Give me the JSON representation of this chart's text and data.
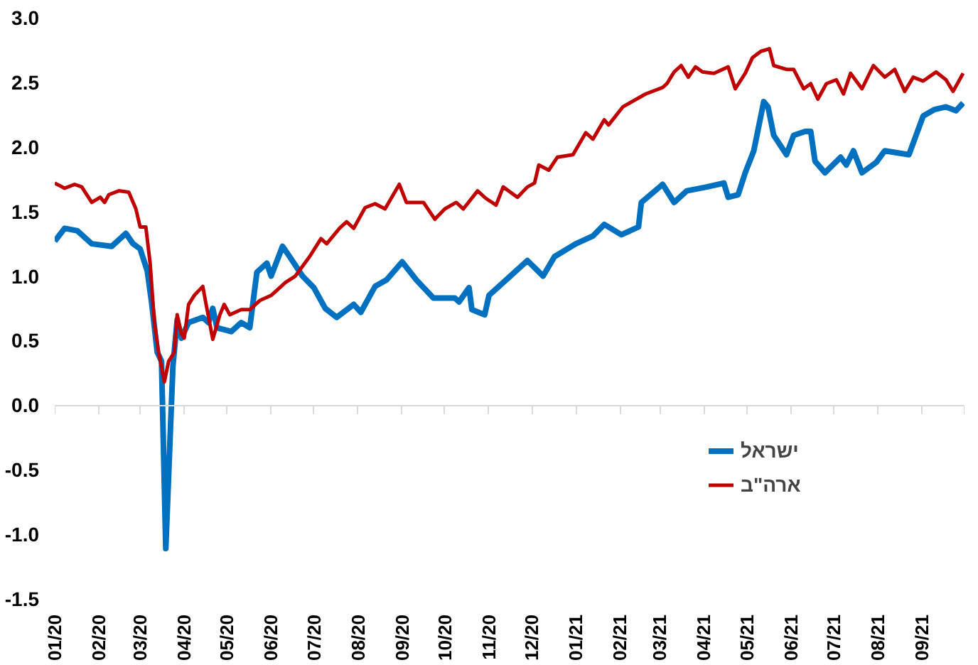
{
  "chart_data": {
    "type": "line",
    "legend": "bottom right",
    "line_style": "solid",
    "marker": "none",
    "xlim": [
      "2020-01-01",
      "2021-10-01"
    ],
    "ylim": [
      -1.5,
      3.0
    ],
    "xticks": [
      {
        "value": "2020-01-01",
        "label": "01/20"
      },
      {
        "value": "2020-02-01",
        "label": "02/20"
      },
      {
        "value": "2020-03-01",
        "label": "03/20"
      },
      {
        "value": "2020-04-01",
        "label": "04/20"
      },
      {
        "value": "2020-05-01",
        "label": "05/20"
      },
      {
        "value": "2020-06-01",
        "label": "06/20"
      },
      {
        "value": "2020-07-01",
        "label": "07/20"
      },
      {
        "value": "2020-08-01",
        "label": "08/20"
      },
      {
        "value": "2020-09-01",
        "label": "09/20"
      },
      {
        "value": "2020-10-01",
        "label": "10/20"
      },
      {
        "value": "2020-11-01",
        "label": "11/20"
      },
      {
        "value": "2020-12-01",
        "label": "12/20"
      },
      {
        "value": "2021-01-01",
        "label": "01/21"
      },
      {
        "value": "2021-02-01",
        "label": "02/21"
      },
      {
        "value": "2021-03-01",
        "label": "03/21"
      },
      {
        "value": "2021-04-01",
        "label": "04/21"
      },
      {
        "value": "2021-05-01",
        "label": "05/21"
      },
      {
        "value": "2021-06-01",
        "label": "06/21"
      },
      {
        "value": "2021-07-01",
        "label": "07/21"
      },
      {
        "value": "2021-08-01",
        "label": "08/21"
      },
      {
        "value": "2021-09-01",
        "label": "09/21"
      },
      {
        "value": "2021-10-01",
        "label": null
      }
    ],
    "yticks": [
      {
        "value": -1.5,
        "label": "-1.5"
      },
      {
        "value": -1.0,
        "label": "-1.0"
      },
      {
        "value": -0.5,
        "label": "-0.5"
      },
      {
        "value": 0,
        "label": "0.0"
      },
      {
        "value": 0.5,
        "label": "0.5"
      },
      {
        "value": 1.0,
        "label": "1.0"
      },
      {
        "value": 1.5,
        "label": "1.5"
      },
      {
        "value": 2.0,
        "label": "2.0"
      },
      {
        "value": 2.5,
        "label": "2.5"
      },
      {
        "value": 3.0,
        "label": "3.0"
      }
    ],
    "series": [
      {
        "name": "ישראל",
        "color": "#0070c0",
        "x": [
          "2020-01-01",
          "2020-01-08",
          "2020-01-17",
          "2020-01-27",
          "2020-02-10",
          "2020-02-20",
          "2020-02-25",
          "2020-03-01",
          "2020-03-06",
          "2020-03-09",
          "2020-03-13",
          "2020-03-16",
          "2020-03-19",
          "2020-03-24",
          "2020-03-27",
          "2020-03-30",
          "2020-04-04",
          "2020-04-14",
          "2020-04-18",
          "2020-04-21",
          "2020-04-24",
          "2020-05-04",
          "2020-05-11",
          "2020-05-17",
          "2020-05-22",
          "2020-05-29",
          "2020-06-01",
          "2020-06-09",
          "2020-06-14",
          "2020-06-23",
          "2020-07-01",
          "2020-07-09",
          "2020-07-17",
          "2020-07-29",
          "2020-08-03",
          "2020-08-13",
          "2020-08-21",
          "2020-09-01",
          "2020-09-11",
          "2020-09-23",
          "2020-10-08",
          "2020-10-11",
          "2020-10-18",
          "2020-10-20",
          "2020-10-29",
          "2020-11-01",
          "2020-11-14",
          "2020-11-28",
          "2020-12-09",
          "2020-12-17",
          "2021-01-01",
          "2021-01-13",
          "2021-01-21",
          "2021-02-02",
          "2021-02-14",
          "2021-02-16",
          "2021-03-03",
          "2021-03-11",
          "2021-03-20",
          "2021-04-03",
          "2021-04-15",
          "2021-04-18",
          "2021-04-25",
          "2021-04-30",
          "2021-05-06",
          "2021-05-13",
          "2021-05-16",
          "2021-05-20",
          "2021-05-29",
          "2021-06-03",
          "2021-06-11",
          "2021-06-15",
          "2021-06-18",
          "2021-06-25",
          "2021-07-06",
          "2021-07-10",
          "2021-07-15",
          "2021-07-21",
          "2021-07-31",
          "2021-08-06",
          "2021-08-23",
          "2021-09-02",
          "2021-09-10",
          "2021-09-18",
          "2021-09-25",
          "2021-09-30"
        ],
        "values": [
          1.27,
          1.37,
          1.35,
          1.25,
          1.23,
          1.33,
          1.25,
          1.21,
          1.04,
          0.8,
          0.41,
          0.34,
          -1.11,
          0.3,
          0.66,
          0.52,
          0.64,
          0.68,
          0.64,
          0.75,
          0.6,
          0.57,
          0.64,
          0.6,
          1.03,
          1.1,
          1.0,
          1.23,
          1.15,
          1.0,
          0.91,
          0.75,
          0.68,
          0.78,
          0.72,
          0.92,
          0.97,
          1.11,
          0.97,
          0.83,
          0.83,
          0.8,
          0.91,
          0.74,
          0.7,
          0.85,
          0.98,
          1.12,
          1.0,
          1.15,
          1.25,
          1.31,
          1.4,
          1.32,
          1.38,
          1.57,
          1.71,
          1.57,
          1.66,
          1.69,
          1.72,
          1.61,
          1.63,
          1.8,
          1.97,
          2.35,
          2.31,
          2.09,
          1.94,
          2.09,
          2.12,
          2.12,
          1.89,
          1.8,
          1.92,
          1.86,
          1.97,
          1.8,
          1.88,
          1.97,
          1.94,
          2.24,
          2.29,
          2.31,
          2.28,
          2.34
        ]
      },
      {
        "name": "ארה\"ב",
        "color": "#c00000",
        "x": [
          "2020-01-01",
          "2020-01-08",
          "2020-01-15",
          "2020-01-20",
          "2020-01-27",
          "2020-02-02",
          "2020-02-05",
          "2020-02-08",
          "2020-02-15",
          "2020-02-22",
          "2020-02-27",
          "2020-03-01",
          "2020-03-05",
          "2020-03-08",
          "2020-03-11",
          "2020-03-14",
          "2020-03-18",
          "2020-03-21",
          "2020-03-25",
          "2020-03-27",
          "2020-03-30",
          "2020-04-01",
          "2020-04-04",
          "2020-04-08",
          "2020-04-14",
          "2020-04-16",
          "2020-04-21",
          "2020-04-26",
          "2020-04-29",
          "2020-05-03",
          "2020-05-11",
          "2020-05-17",
          "2020-05-24",
          "2020-06-01",
          "2020-06-11",
          "2020-06-18",
          "2020-06-28",
          "2020-07-06",
          "2020-07-10",
          "2020-07-19",
          "2020-07-24",
          "2020-07-29",
          "2020-08-06",
          "2020-08-13",
          "2020-08-20",
          "2020-08-30",
          "2020-09-04",
          "2020-09-16",
          "2020-09-24",
          "2020-10-01",
          "2020-10-09",
          "2020-10-14",
          "2020-10-24",
          "2020-10-30",
          "2020-11-06",
          "2020-11-11",
          "2020-11-21",
          "2020-11-28",
          "2020-12-03",
          "2020-12-06",
          "2020-12-13",
          "2020-12-19",
          "2020-12-30",
          "2021-01-08",
          "2021-01-13",
          "2021-01-21",
          "2021-01-24",
          "2021-02-03",
          "2021-02-19",
          "2021-03-03",
          "2021-03-06",
          "2021-03-11",
          "2021-03-16",
          "2021-03-21",
          "2021-03-26",
          "2021-03-31",
          "2021-04-08",
          "2021-04-18",
          "2021-04-23",
          "2021-04-30",
          "2021-05-05",
          "2021-05-11",
          "2021-05-17",
          "2021-05-20",
          "2021-05-29",
          "2021-06-03",
          "2021-06-10",
          "2021-06-15",
          "2021-06-20",
          "2021-06-26",
          "2021-07-03",
          "2021-07-08",
          "2021-07-13",
          "2021-07-21",
          "2021-07-29",
          "2021-08-06",
          "2021-08-13",
          "2021-08-20",
          "2021-08-26",
          "2021-09-02",
          "2021-09-11",
          "2021-09-18",
          "2021-09-23",
          "2021-09-30"
        ],
        "values": [
          1.72,
          1.68,
          1.71,
          1.69,
          1.57,
          1.61,
          1.57,
          1.63,
          1.66,
          1.65,
          1.52,
          1.38,
          1.38,
          1.1,
          0.64,
          0.41,
          0.18,
          0.34,
          0.41,
          0.7,
          0.55,
          0.52,
          0.78,
          0.85,
          0.92,
          0.8,
          0.51,
          0.7,
          0.78,
          0.7,
          0.74,
          0.74,
          0.81,
          0.85,
          0.95,
          1.0,
          1.15,
          1.29,
          1.25,
          1.37,
          1.42,
          1.37,
          1.53,
          1.56,
          1.52,
          1.71,
          1.57,
          1.57,
          1.44,
          1.52,
          1.57,
          1.52,
          1.66,
          1.6,
          1.55,
          1.69,
          1.61,
          1.69,
          1.72,
          1.86,
          1.82,
          1.92,
          1.94,
          2.11,
          2.06,
          2.21,
          2.17,
          2.31,
          2.41,
          2.46,
          2.49,
          2.58,
          2.63,
          2.54,
          2.62,
          2.58,
          2.57,
          2.62,
          2.45,
          2.57,
          2.69,
          2.74,
          2.76,
          2.63,
          2.6,
          2.6,
          2.45,
          2.49,
          2.37,
          2.49,
          2.52,
          2.41,
          2.57,
          2.45,
          2.63,
          2.54,
          2.6,
          2.43,
          2.54,
          2.51,
          2.58,
          2.52,
          2.43,
          2.57
        ]
      }
    ]
  }
}
